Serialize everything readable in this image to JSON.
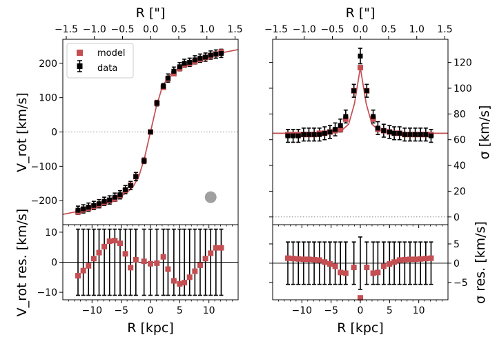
{
  "labels": {
    "top_axis": "R [\"]",
    "bottom_axis": "R [kpc]",
    "vrot": "V_rot [km/s]",
    "vrot_res": "V_rot res. [km/s]",
    "sigma": "σ [km/s]",
    "sigma_res": "σ res. [km/s]"
  },
  "legend": {
    "model": "model",
    "data": "data"
  },
  "colors": {
    "model": "#c44e52",
    "data": "#000000",
    "beam": "#a0a0a0",
    "zero_line": "#808080"
  },
  "chart_data": [
    {
      "panel": "rotation-velocity",
      "type": "scatter",
      "xlabel": "R [kpc]",
      "ylabel": "V_rot [km/s]",
      "top_xlabel": "R [\"]",
      "xlim": [
        -15,
        15
      ],
      "ylim": [
        -270,
        270
      ],
      "x_ticks": [
        -10,
        -5,
        0,
        5,
        10
      ],
      "top_ticks": [
        "−1.5",
        "−1.0",
        "−0.5",
        "0.0",
        "0.5",
        "1.0",
        "1.5"
      ],
      "y_ticks": [
        -200,
        -100,
        0,
        100,
        200
      ],
      "legend_position": "top-left",
      "x": [
        -12.4,
        -11.5,
        -10.6,
        -9.7,
        -8.8,
        -7.9,
        -7.0,
        -6.1,
        -5.2,
        -4.3,
        -3.4,
        -2.5,
        -1.1,
        0.0,
        1.1,
        2.2,
        3.0,
        4.0,
        5.0,
        5.8,
        6.7,
        7.6,
        8.5,
        9.4,
        10.3,
        11.2,
        12.1
      ],
      "series": [
        {
          "name": "model",
          "values": [
            -233,
            -227,
            -222,
            -217,
            -212,
            -205,
            -200,
            -195,
            -185,
            -170,
            -155,
            -130,
            -84,
            0,
            84,
            130,
            155,
            170,
            185,
            195,
            200,
            205,
            212,
            217,
            222,
            227,
            233
          ]
        },
        {
          "name": "data",
          "values": [
            -228,
            -224,
            -219,
            -214,
            -209,
            -202,
            -198,
            -190,
            -183,
            -168,
            -156,
            -130,
            -84,
            0,
            84,
            133,
            157,
            177,
            190,
            200,
            203,
            210,
            215,
            218,
            224,
            227,
            229
          ],
          "error": [
            12,
            12,
            12,
            12,
            12,
            12,
            12,
            12,
            12,
            12,
            12,
            12,
            8,
            6,
            8,
            8,
            12,
            12,
            12,
            12,
            12,
            12,
            12,
            12,
            12,
            12,
            12
          ]
        }
      ],
      "model_curve": {
        "x": [
          -15,
          -12,
          -10,
          -8,
          -6,
          -4,
          -3,
          -2,
          -1,
          0,
          1,
          2,
          3,
          4,
          6,
          8,
          10,
          12,
          15
        ],
        "y": [
          -240,
          -230,
          -219,
          -209,
          -197,
          -176,
          -160,
          -130,
          -74,
          0,
          74,
          130,
          160,
          176,
          197,
          209,
          219,
          230,
          240
        ]
      },
      "beam": {
        "x": 10.3,
        "y": -190,
        "diameter_kpc": 2.0
      }
    },
    {
      "panel": "velocity-dispersion",
      "type": "scatter",
      "xlabel": "R [kpc]",
      "ylabel": "σ [km/s]",
      "top_xlabel": "R [\"]",
      "xlim": [
        -15,
        15
      ],
      "ylim": [
        -6,
        138
      ],
      "x_ticks": [
        -10,
        -5,
        0,
        5,
        10
      ],
      "top_ticks": [
        "−1.5",
        "−1.0",
        "−0.5",
        "0.0",
        "0.5",
        "1.0",
        "1.5"
      ],
      "y_ticks": [
        0,
        20,
        40,
        60,
        80,
        100,
        120
      ],
      "x": [
        -12.4,
        -11.5,
        -10.6,
        -9.7,
        -8.8,
        -7.9,
        -7.0,
        -6.1,
        -5.2,
        -4.3,
        -3.4,
        -2.5,
        -1.1,
        0.0,
        1.1,
        2.2,
        3.0,
        4.0,
        5.0,
        5.8,
        6.7,
        7.6,
        8.5,
        9.4,
        10.3,
        11.2,
        12.1
      ],
      "series": [
        {
          "name": "model",
          "values": [
            64,
            64,
            64,
            64,
            64,
            64,
            65,
            65,
            66,
            67,
            68,
            76,
            98,
            116,
            98,
            76,
            68,
            67,
            66,
            65,
            65,
            64,
            64,
            64,
            64,
            64,
            64
          ]
        },
        {
          "name": "data",
          "values": [
            63,
            63,
            63,
            64,
            64,
            64,
            64,
            65,
            66,
            68,
            71,
            78,
            98,
            125,
            98,
            78,
            69,
            67,
            66,
            65,
            65,
            64,
            64,
            64,
            64,
            64,
            63
          ],
          "error": [
            5,
            5,
            5,
            5,
            5,
            5,
            5,
            5,
            5,
            5,
            5,
            5,
            5,
            6,
            5,
            5,
            5,
            5,
            5,
            5,
            5,
            5,
            5,
            5,
            5,
            5,
            5
          ]
        }
      ],
      "model_curve": {
        "x": [
          -15,
          -8,
          -5,
          -3,
          -2,
          -1,
          0,
          1,
          2,
          3,
          5,
          8,
          15
        ],
        "y": [
          65,
          65,
          66,
          68,
          72,
          88,
          116,
          88,
          72,
          68,
          66,
          65,
          65
        ]
      }
    },
    {
      "panel": "rotation-residuals",
      "type": "scatter",
      "xlabel": "R [kpc]",
      "ylabel": "V_rot res. [km/s]",
      "xlim": [
        -15,
        15
      ],
      "ylim": [
        -12.5,
        12.5
      ],
      "x_ticks": [
        -10,
        -5,
        0,
        5,
        10
      ],
      "y_ticks": [
        -10,
        0,
        10
      ],
      "x": [
        -12.4,
        -11.5,
        -10.6,
        -9.7,
        -8.8,
        -7.9,
        -7.0,
        -6.1,
        -5.2,
        -4.3,
        -3.4,
        -2.5,
        -1.1,
        0.0,
        1.1,
        2.2,
        3.0,
        4.0,
        5.0,
        5.8,
        6.7,
        7.6,
        8.5,
        9.4,
        10.3,
        11.2,
        12.1
      ],
      "series": [
        {
          "name": "model",
          "values": [
            -4.5,
            -2.8,
            -1.2,
            1.2,
            3.2,
            5.2,
            7.0,
            7.2,
            6.3,
            2.8,
            -1.8,
            0.8,
            0.3,
            -0.5,
            -0.3,
            1.8,
            -2.3,
            -6.2,
            -7.2,
            -6.8,
            -5.0,
            -3.0,
            -1.0,
            1.2,
            3.0,
            4.8,
            4.8
          ]
        },
        {
          "name": "data",
          "values": [
            0,
            0,
            0,
            0,
            0,
            0,
            0,
            0,
            0,
            0,
            0,
            0,
            0,
            0,
            0,
            0,
            0,
            0,
            0,
            0,
            0,
            0,
            0,
            0,
            0,
            0,
            0
          ],
          "error": [
            11,
            11,
            11,
            11,
            11,
            11,
            11,
            11,
            11,
            11,
            11,
            11,
            11,
            11,
            11,
            11,
            11,
            11,
            11,
            11,
            11,
            11,
            11,
            11,
            11,
            11,
            11
          ]
        }
      ]
    },
    {
      "panel": "dispersion-residuals",
      "type": "scatter",
      "xlabel": "R [kpc]",
      "ylabel": "σ res. [km/s]",
      "xlim": [
        -15,
        15
      ],
      "ylim": [
        -9.5,
        10
      ],
      "x_ticks": [
        -10,
        -5,
        0,
        5,
        10
      ],
      "y_ticks": [
        -5,
        0,
        5
      ],
      "x": [
        -12.4,
        -11.5,
        -10.6,
        -9.7,
        -8.8,
        -7.9,
        -7.0,
        -6.1,
        -5.2,
        -4.3,
        -3.4,
        -2.5,
        -1.1,
        0.0,
        1.1,
        2.2,
        3.0,
        4.0,
        5.0,
        5.8,
        6.7,
        7.6,
        8.5,
        9.4,
        10.3,
        11.2,
        12.1
      ],
      "series": [
        {
          "name": "model",
          "values": [
            1.3,
            1.2,
            1.1,
            1.0,
            1.0,
            0.9,
            0.8,
            0.3,
            -0.2,
            -0.8,
            -2.4,
            -2.6,
            -1.1,
            -9.0,
            -1.1,
            -2.6,
            -2.4,
            -0.8,
            -0.2,
            0.3,
            0.8,
            0.9,
            1.0,
            1.0,
            1.1,
            1.2,
            1.3
          ]
        },
        {
          "name": "data",
          "values": [
            0,
            0,
            0,
            0,
            0,
            0,
            0,
            0,
            0,
            0,
            0,
            0,
            0,
            0,
            0,
            0,
            0,
            0,
            0,
            0,
            0,
            0,
            0,
            0,
            0,
            0,
            0
          ],
          "error": [
            5.5,
            5.5,
            5.5,
            5.5,
            5.5,
            5.5,
            5.5,
            5.5,
            5.5,
            5.5,
            5.5,
            5.5,
            5.5,
            6.8,
            5.5,
            5.5,
            5.5,
            5.5,
            5.5,
            5.5,
            5.5,
            5.5,
            5.5,
            5.5,
            5.5,
            5.5,
            5.5
          ]
        }
      ]
    }
  ]
}
